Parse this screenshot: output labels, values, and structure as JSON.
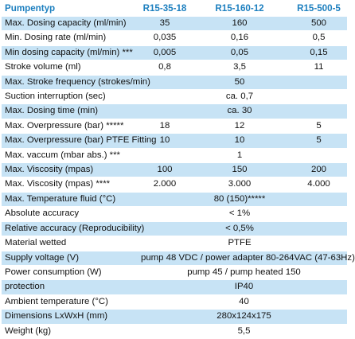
{
  "header": [
    "Pumpentyp",
    "R15-35-18",
    "R15-160-12",
    "R15-500-5"
  ],
  "rows": [
    {
      "label": "Max. Dosing capacity (ml/min)",
      "shade": true,
      "values": [
        "35",
        "160",
        "500"
      ]
    },
    {
      "label": "Min. Dosing rate (ml/min)",
      "shade": false,
      "values": [
        "0,035",
        "0,16",
        "0,5"
      ]
    },
    {
      "label": "Min dosing capacity (ml/min) ***",
      "shade": true,
      "values": [
        "0,005",
        "0,05",
        "0,15"
      ]
    },
    {
      "label": "Stroke volume (ml)",
      "shade": false,
      "values": [
        "0,8",
        "3,5",
        "11"
      ]
    },
    {
      "label": "Max. Stroke frequency (strokes/min)",
      "shade": true,
      "values": [
        "",
        "50",
        ""
      ]
    },
    {
      "label": "Suction interruption (sec)",
      "shade": false,
      "values": [
        "",
        "ca. 0,7",
        ""
      ]
    },
    {
      "label": "Max. Dosing time (min)",
      "shade": true,
      "values": [
        "",
        "ca. 30",
        ""
      ]
    },
    {
      "label": "Max. Overpressure (bar) *****",
      "shade": false,
      "values": [
        "18",
        "12",
        "5"
      ]
    },
    {
      "label": "Max. Overpressure (bar) PTFE Fitting",
      "shade": true,
      "values": [
        "10",
        "10",
        "5"
      ]
    },
    {
      "label": "Max. vaccum (mbar abs.) ***",
      "shade": false,
      "values": [
        "",
        "1",
        ""
      ]
    },
    {
      "label": "Max. Viscosity (mpas)",
      "shade": true,
      "values": [
        "100",
        "150",
        "200"
      ]
    },
    {
      "label": "Max. Viscosity (mpas) ****",
      "shade": false,
      "values": [
        "2.000",
        "3.000",
        "4.000"
      ]
    },
    {
      "label": "Max. Temperature fluid (°C)",
      "shade": true,
      "values": [
        "",
        "80 (150)*****",
        ""
      ]
    },
    {
      "label": "Absolute accuracy",
      "shade": false,
      "values": [
        "",
        "< 1%",
        ""
      ]
    },
    {
      "label": "Relative accuracy (Reproducibility)",
      "shade": true,
      "values": [
        "",
        "< 0,5%",
        ""
      ]
    },
    {
      "label": "Material wetted",
      "shade": false,
      "values": [
        "",
        "PTFE",
        ""
      ]
    }
  ],
  "span_rows": [
    {
      "label": "Supply voltage (V)",
      "shade": true,
      "value": "pump 48 VDC  / power adapter 80-264VAC (47-63Hz)"
    },
    {
      "label": "Power consumption (W)",
      "shade": false,
      "value": "pump 45 / pump heated 150"
    },
    {
      "label": "protection",
      "shade": true,
      "value": "IP40"
    },
    {
      "label": "Ambient temperature (°C)",
      "shade": false,
      "value": "40"
    },
    {
      "label": "Dimensions LxWxH (mm)",
      "shade": true,
      "value": "280x124x175"
    },
    {
      "label": "Weight (kg)",
      "shade": false,
      "value": "5,5"
    }
  ]
}
